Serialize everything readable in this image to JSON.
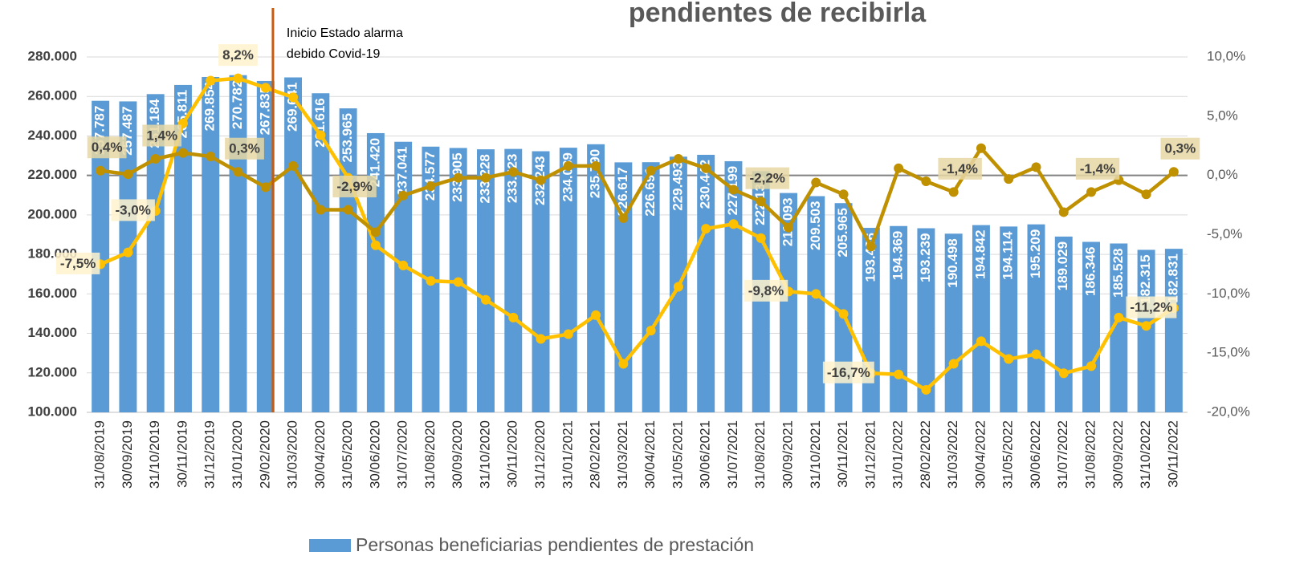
{
  "chart_data": {
    "type": "bar",
    "title": "pendientes de recibirla",
    "annotation": [
      "Inicio Estado alarma",
      "debido Covid-19"
    ],
    "categories": [
      "31/08/2019",
      "30/09/2019",
      "31/10/2019",
      "30/11/2019",
      "31/12/2019",
      "31/01/2020",
      "29/02/2020",
      "31/03/2020",
      "30/04/2020",
      "31/05/2020",
      "30/06/2020",
      "31/07/2020",
      "31/08/2020",
      "30/09/2020",
      "31/10/2020",
      "30/11/2020",
      "31/12/2020",
      "31/01/2021",
      "28/02/2021",
      "31/03/2021",
      "30/04/2021",
      "31/05/2021",
      "30/06/2021",
      "31/07/2021",
      "31/08/2021",
      "30/09/2021",
      "31/10/2021",
      "30/11/2021",
      "31/12/2021",
      "31/01/2022",
      "28/02/2022",
      "31/03/2022",
      "30/04/2022",
      "31/05/2022",
      "30/06/2022",
      "31/07/2022",
      "31/08/2022",
      "30/09/2022",
      "31/10/2022",
      "30/11/2022"
    ],
    "series": [
      {
        "name": "Personas beneficiarias pendientes de prestación",
        "type": "bar",
        "color": "#5b9bd5",
        "values": [
          257787,
          257487,
          261184,
          265811,
          269854,
          270782,
          267835,
          269641,
          261616,
          253965,
          241420,
          237041,
          234577,
          233905,
          233228,
          233423,
          232243,
          234039,
          235790,
          226617,
          226691,
          229493,
          230442,
          227199,
          222138,
          211093,
          209503,
          205965,
          193436,
          194369,
          193239,
          190498,
          194842,
          194114,
          195209,
          189029,
          186346,
          185528,
          182315,
          182831
        ],
        "value_labels": [
          "257.787",
          "257.487",
          "261.184",
          "265.811",
          "269.854",
          "270.782",
          "267.835",
          "269.641",
          "261.616",
          "253.965",
          "241.420",
          "237.041",
          "234.577",
          "233.905",
          "233.228",
          "233.423",
          "232.243",
          "234.039",
          "235.790",
          "226.617",
          "226.691",
          "229.493",
          "230.442",
          "227.199",
          "222.138",
          "211.093",
          "209.503",
          "205.965",
          "193.436",
          "194.369",
          "193.239",
          "190.498",
          "194.842",
          "194.114",
          "195.209",
          "189.029",
          "186.346",
          "185.528",
          "182.315",
          "182.831"
        ]
      },
      {
        "type": "line",
        "axis": "y2",
        "color": "#ffc000",
        "values": [
          -7.5,
          -6.5,
          -3.0,
          4.4,
          8.0,
          8.2,
          7.4,
          6.6,
          3.4,
          -0.2,
          -5.9,
          -7.6,
          -8.9,
          -9.0,
          -10.5,
          -12.0,
          -13.8,
          -13.4,
          -11.8,
          -15.9,
          -13.1,
          -9.4,
          -4.5,
          -4.1,
          -5.3,
          -9.8,
          -10.0,
          -11.7,
          -16.7,
          -16.8,
          -18.1,
          -15.9,
          -14.0,
          -15.5,
          -15.1,
          -16.7,
          -16.1,
          -12.0,
          -12.7,
          -11.2
        ],
        "value_labels": [
          "-7,5%",
          null,
          "-3,0%",
          null,
          null,
          "8,2%",
          null,
          null,
          null,
          null,
          null,
          null,
          null,
          null,
          null,
          null,
          null,
          null,
          null,
          null,
          null,
          null,
          null,
          null,
          null,
          "-9,8%",
          null,
          null,
          "-16,7%",
          null,
          null,
          null,
          null,
          null,
          null,
          null,
          null,
          null,
          null,
          "-11,2%"
        ]
      },
      {
        "type": "line",
        "axis": "y2",
        "color": "#bf9000",
        "values": [
          0.4,
          0.1,
          1.4,
          1.9,
          1.6,
          0.3,
          -1.0,
          0.8,
          -2.9,
          -2.9,
          -4.8,
          -1.7,
          -0.9,
          -0.2,
          -0.2,
          0.3,
          -0.4,
          0.8,
          0.8,
          -3.6,
          0.4,
          1.4,
          0.6,
          -1.2,
          -2.2,
          -4.4,
          -0.6,
          -1.6,
          -6.0,
          0.6,
          -0.5,
          -1.4,
          2.3,
          -0.3,
          0.7,
          -3.1,
          -1.4,
          -0.4,
          -1.6,
          0.3
        ],
        "value_labels": [
          "0,4%",
          null,
          "1,4%",
          null,
          null,
          "0,3%",
          null,
          null,
          null,
          "-2,9%",
          null,
          null,
          null,
          null,
          null,
          null,
          null,
          null,
          null,
          null,
          null,
          null,
          null,
          null,
          "-2,2%",
          null,
          null,
          null,
          null,
          null,
          null,
          "-1,4%",
          null,
          null,
          null,
          null,
          "-1,4%",
          null,
          null,
          "0,3%"
        ]
      }
    ],
    "ylim": [
      100000,
      280000
    ],
    "yticks": [
      {
        "value": 100000,
        "label": "100.000"
      },
      {
        "value": 120000,
        "label": "120.000"
      },
      {
        "value": 140000,
        "label": "140.000"
      },
      {
        "value": 160000,
        "label": "160.000"
      },
      {
        "value": 180000,
        "label": "180.000"
      },
      {
        "value": 200000,
        "label": "200.000"
      },
      {
        "value": 220000,
        "label": "220.000"
      },
      {
        "value": 240000,
        "label": "240.000"
      },
      {
        "value": 260000,
        "label": "260.000"
      },
      {
        "value": 280000,
        "label": "280.000"
      }
    ],
    "y2lim": [
      -20,
      10
    ],
    "y2ticks": [
      {
        "value": -20,
        "label": "-20,0%"
      },
      {
        "value": -15,
        "label": "-15,0%"
      },
      {
        "value": -10,
        "label": "-10,0%"
      },
      {
        "value": -5,
        "label": "-5,0%"
      },
      {
        "value": 0,
        "label": "0,0%"
      },
      {
        "value": 5,
        "label": "5,0%"
      },
      {
        "value": 10,
        "label": "10,0%"
      }
    ],
    "grid": true,
    "legend": "bottom"
  }
}
